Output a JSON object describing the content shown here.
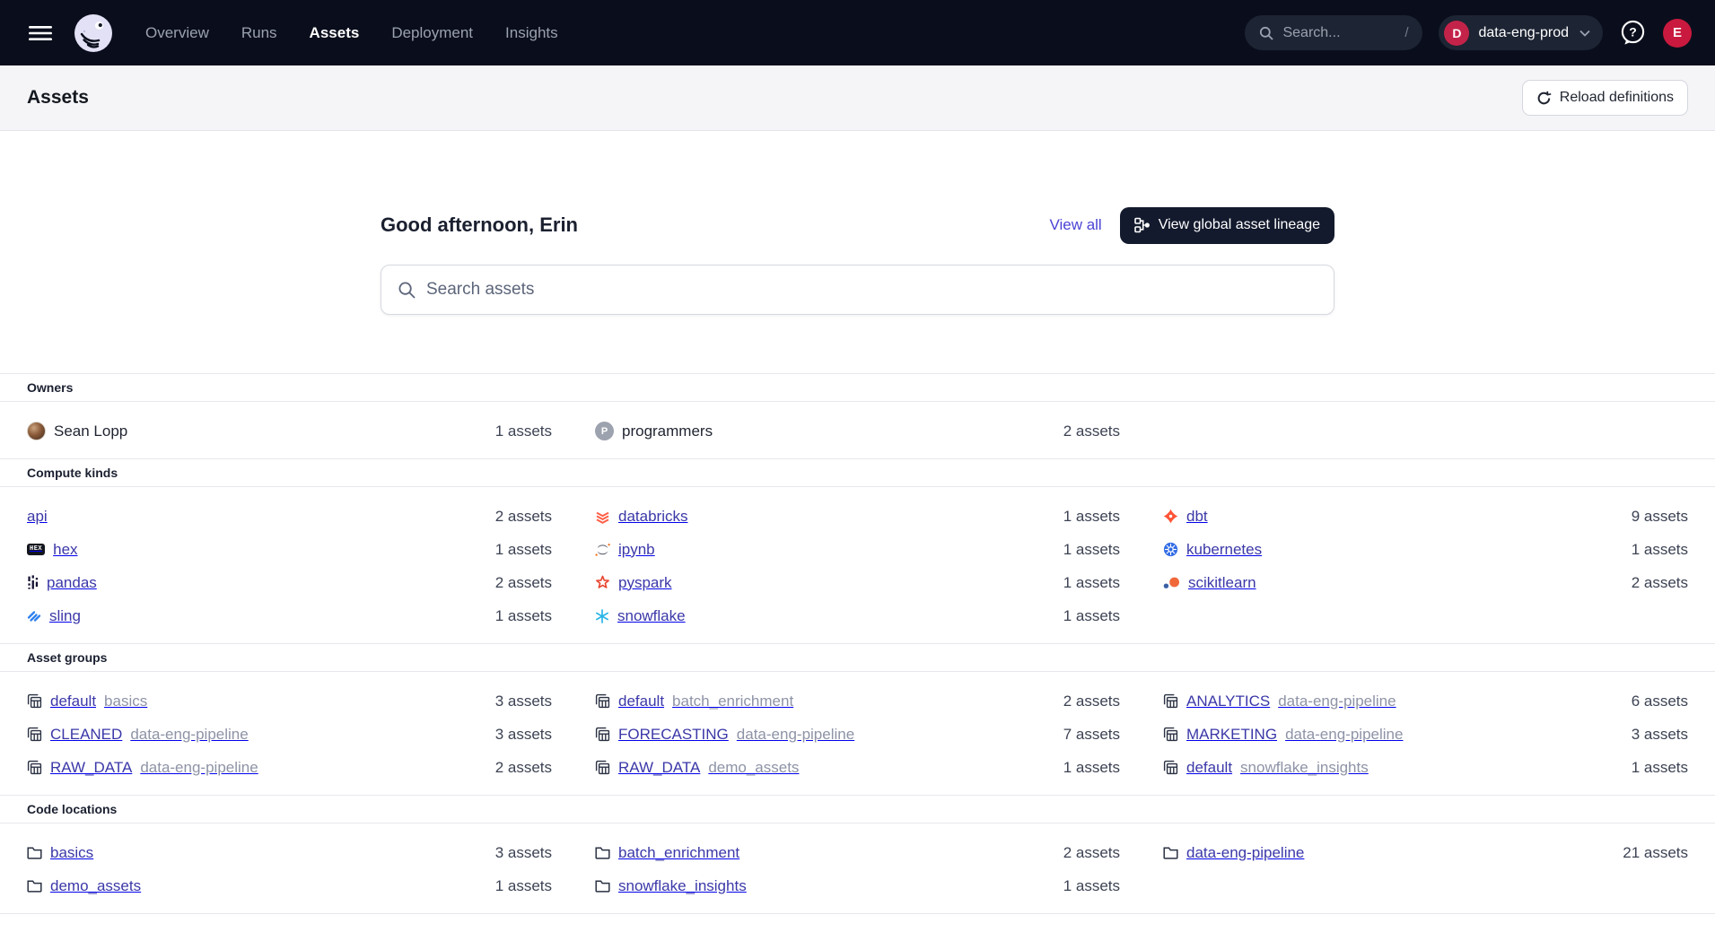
{
  "colors": {
    "nav_bg": "#0A0E1C",
    "accent_link": "#4B43D4",
    "item_link": "#3B38A8",
    "crimson": "#C42349",
    "dark_button": "#131A2D"
  },
  "nav": {
    "links": [
      {
        "label": "Overview",
        "active": false
      },
      {
        "label": "Runs",
        "active": false
      },
      {
        "label": "Assets",
        "active": true
      },
      {
        "label": "Deployment",
        "active": false
      },
      {
        "label": "Insights",
        "active": false
      }
    ],
    "search_placeholder": "Search...",
    "search_shortcut": "/",
    "deployment": {
      "badge_letter": "D",
      "label": "data-eng-prod"
    },
    "user_initial": "E"
  },
  "header": {
    "title": "Assets",
    "reload_label": "Reload definitions"
  },
  "hero": {
    "greeting": "Good afternoon, Erin",
    "view_all_label": "View all",
    "lineage_label": "View global asset lineage",
    "search_placeholder": "Search assets"
  },
  "sections": [
    {
      "label": "Owners",
      "items": [
        {
          "icon": "user-photo",
          "name": "Sean Lopp",
          "count": "1 assets",
          "plain": true
        },
        {
          "icon": "team-badge",
          "name": "programmers",
          "count": "2 assets",
          "plain": true
        }
      ]
    },
    {
      "label": "Compute kinds",
      "items": [
        {
          "icon": null,
          "name": "api",
          "count": "2 assets"
        },
        {
          "icon": "databricks",
          "name": "databricks",
          "count": "1 assets"
        },
        {
          "icon": "dbt",
          "name": "dbt",
          "count": "9 assets"
        },
        {
          "icon": "hex",
          "name": "hex",
          "count": "1 assets"
        },
        {
          "icon": "ipynb",
          "name": "ipynb",
          "count": "1 assets"
        },
        {
          "icon": "kubernetes",
          "name": "kubernetes",
          "count": "1 assets"
        },
        {
          "icon": "pandas",
          "name": "pandas",
          "count": "2 assets"
        },
        {
          "icon": "pyspark",
          "name": "pyspark",
          "count": "1 assets"
        },
        {
          "icon": "scikitlearn",
          "name": "scikitlearn",
          "count": "2 assets"
        },
        {
          "icon": "sling",
          "name": "sling",
          "count": "1 assets"
        },
        {
          "icon": "snowflake",
          "name": "snowflake",
          "count": "1 assets"
        }
      ]
    },
    {
      "label": "Asset groups",
      "items": [
        {
          "icon": "asset-group",
          "name": "default",
          "suffix": "basics",
          "count": "3 assets"
        },
        {
          "icon": "asset-group",
          "name": "default",
          "suffix": "batch_enrichment",
          "count": "2 assets"
        },
        {
          "icon": "asset-group",
          "name": "ANALYTICS",
          "suffix": "data-eng-pipeline",
          "count": "6 assets"
        },
        {
          "icon": "asset-group",
          "name": "CLEANED",
          "suffix": "data-eng-pipeline",
          "count": "3 assets"
        },
        {
          "icon": "asset-group",
          "name": "FORECASTING",
          "suffix": "data-eng-pipeline",
          "count": "7 assets"
        },
        {
          "icon": "asset-group",
          "name": "MARKETING",
          "suffix": "data-eng-pipeline",
          "count": "3 assets"
        },
        {
          "icon": "asset-group",
          "name": "RAW_DATA",
          "suffix": "data-eng-pipeline",
          "count": "2 assets"
        },
        {
          "icon": "asset-group",
          "name": "RAW_DATA",
          "suffix": "demo_assets",
          "count": "1 assets"
        },
        {
          "icon": "asset-group",
          "name": "default",
          "suffix": "snowflake_insights",
          "count": "1 assets"
        }
      ]
    },
    {
      "label": "Code locations",
      "items": [
        {
          "icon": "folder",
          "name": "basics",
          "count": "3 assets"
        },
        {
          "icon": "folder",
          "name": "batch_enrichment",
          "count": "2 assets"
        },
        {
          "icon": "folder",
          "name": "data-eng-pipeline",
          "count": "21 assets"
        },
        {
          "icon": "folder",
          "name": "demo_assets",
          "count": "1 assets"
        },
        {
          "icon": "folder",
          "name": "snowflake_insights",
          "count": "1 assets"
        }
      ]
    }
  ]
}
